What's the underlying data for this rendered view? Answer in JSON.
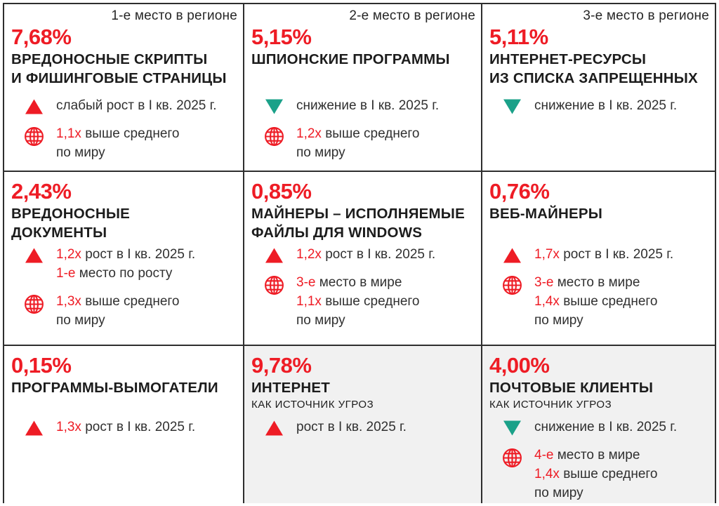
{
  "colors": {
    "accent_red": "#ee1c25",
    "accent_teal": "#1ba189",
    "card_bg": "#ffffff",
    "card_bg_alt": "#f1f1f1",
    "grid_border": "#2e2e2e",
    "text_dark": "#1c1c1c"
  },
  "cards": [
    {
      "rank_label": "1-е место в регионе",
      "percent": "7,68%",
      "title_lines": [
        "ВРЕДОНОСНЫЕ СКРИПТЫ",
        "И ФИШИНГОВЫЕ СТРАНИЦЫ"
      ],
      "subtitle": null,
      "alt_bg": false,
      "stats": [
        {
          "icon": "triangle-up-icon",
          "lines": [
            [
              {
                "text": "слабый рост в I кв. 2025 г.",
                "red": false
              }
            ]
          ]
        },
        {
          "icon": "globe-icon",
          "lines": [
            [
              {
                "text": "1,1x",
                "red": true
              },
              {
                "text": " выше среднего",
                "red": false
              }
            ],
            [
              {
                "text": "по миру",
                "red": false
              }
            ]
          ]
        }
      ]
    },
    {
      "rank_label": "2-е место в регионе",
      "percent": "5,15%",
      "title_lines": [
        "ШПИОНСКИЕ ПРОГРАММЫ"
      ],
      "subtitle": null,
      "alt_bg": false,
      "stats": [
        {
          "icon": "triangle-down-icon",
          "lines": [
            [
              {
                "text": "снижение в I кв. 2025 г.",
                "red": false
              }
            ]
          ]
        },
        {
          "icon": "globe-icon",
          "lines": [
            [
              {
                "text": "1,2x",
                "red": true
              },
              {
                "text": " выше среднего",
                "red": false
              }
            ],
            [
              {
                "text": "по миру",
                "red": false
              }
            ]
          ]
        }
      ]
    },
    {
      "rank_label": "3-е место в регионе",
      "percent": "5,11%",
      "title_lines": [
        "ИНТЕРНЕТ-РЕСУРСЫ",
        "ИЗ СПИСКА ЗАПРЕЩЕННЫХ"
      ],
      "subtitle": null,
      "alt_bg": false,
      "stats": [
        {
          "icon": "triangle-down-icon",
          "lines": [
            [
              {
                "text": "снижение в I кв. 2025 г.",
                "red": false
              }
            ]
          ]
        }
      ]
    },
    {
      "rank_label": null,
      "percent": "2,43%",
      "title_lines": [
        "ВРЕДОНОСНЫЕ",
        "ДОКУМЕНТЫ"
      ],
      "subtitle": null,
      "alt_bg": false,
      "stats": [
        {
          "icon": "triangle-up-icon",
          "lines": [
            [
              {
                "text": "1,2x",
                "red": true
              },
              {
                "text": " рост в I кв. 2025 г.",
                "red": false
              }
            ],
            [
              {
                "text": "1-е",
                "red": true
              },
              {
                "text": " место по росту",
                "red": false
              }
            ]
          ]
        },
        {
          "icon": "globe-icon",
          "lines": [
            [
              {
                "text": "1,3x",
                "red": true
              },
              {
                "text": " выше среднего",
                "red": false
              }
            ],
            [
              {
                "text": "по миру",
                "red": false
              }
            ]
          ]
        }
      ]
    },
    {
      "rank_label": null,
      "percent": "0,85%",
      "title_lines": [
        "МАЙНЕРЫ – ИСПОЛНЯЕМЫЕ",
        "ФАЙЛЫ ДЛЯ WINDOWS"
      ],
      "subtitle": null,
      "alt_bg": false,
      "stats": [
        {
          "icon": "triangle-up-icon",
          "lines": [
            [
              {
                "text": "1,2x",
                "red": true
              },
              {
                "text": " рост в I кв. 2025 г.",
                "red": false
              }
            ]
          ]
        },
        {
          "icon": "globe-icon",
          "lines": [
            [
              {
                "text": "3-е",
                "red": true
              },
              {
                "text": " место в мире",
                "red": false
              }
            ],
            [
              {
                "text": "1,1x",
                "red": true
              },
              {
                "text": " выше среднего",
                "red": false
              }
            ],
            [
              {
                "text": "по миру",
                "red": false
              }
            ]
          ]
        }
      ]
    },
    {
      "rank_label": null,
      "percent": "0,76%",
      "title_lines": [
        "ВЕБ-МАЙНЕРЫ"
      ],
      "subtitle": null,
      "alt_bg": false,
      "stats": [
        {
          "icon": "triangle-up-icon",
          "lines": [
            [
              {
                "text": "1,7x",
                "red": true
              },
              {
                "text": " рост в I кв. 2025 г.",
                "red": false
              }
            ]
          ]
        },
        {
          "icon": "globe-icon",
          "lines": [
            [
              {
                "text": "3-е",
                "red": true
              },
              {
                "text": " место в мире",
                "red": false
              }
            ],
            [
              {
                "text": "1,4x",
                "red": true
              },
              {
                "text": " выше среднего",
                "red": false
              }
            ],
            [
              {
                "text": "по миру",
                "red": false
              }
            ]
          ]
        }
      ]
    },
    {
      "rank_label": null,
      "percent": "0,15%",
      "title_lines": [
        "ПРОГРАММЫ-ВЫМОГАТЕЛИ"
      ],
      "subtitle": null,
      "alt_bg": false,
      "stats": [
        {
          "icon": "triangle-up-icon",
          "lines": [
            [
              {
                "text": "1,3x",
                "red": true
              },
              {
                "text": " рост в I кв. 2025 г.",
                "red": false
              }
            ]
          ]
        }
      ]
    },
    {
      "rank_label": null,
      "percent": "9,78%",
      "title_lines": [
        "ИНТЕРНЕТ"
      ],
      "subtitle": "КАК ИСТОЧНИК УГРОЗ",
      "alt_bg": true,
      "stats": [
        {
          "icon": "triangle-up-icon",
          "lines": [
            [
              {
                "text": "рост в I кв. 2025 г.",
                "red": false
              }
            ]
          ]
        }
      ]
    },
    {
      "rank_label": null,
      "percent": "4,00%",
      "title_lines": [
        "ПОЧТОВЫЕ КЛИЕНТЫ"
      ],
      "subtitle": "КАК ИСТОЧНИК УГРОЗ",
      "alt_bg": true,
      "stats": [
        {
          "icon": "triangle-down-icon",
          "lines": [
            [
              {
                "text": "снижение в I кв. 2025 г.",
                "red": false
              }
            ]
          ]
        },
        {
          "icon": "globe-icon",
          "lines": [
            [
              {
                "text": "4-е",
                "red": true
              },
              {
                "text": " место в мире",
                "red": false
              }
            ],
            [
              {
                "text": "1,4x",
                "red": true
              },
              {
                "text": " выше среднего",
                "red": false
              }
            ],
            [
              {
                "text": "по миру",
                "red": false
              }
            ]
          ]
        }
      ]
    }
  ]
}
